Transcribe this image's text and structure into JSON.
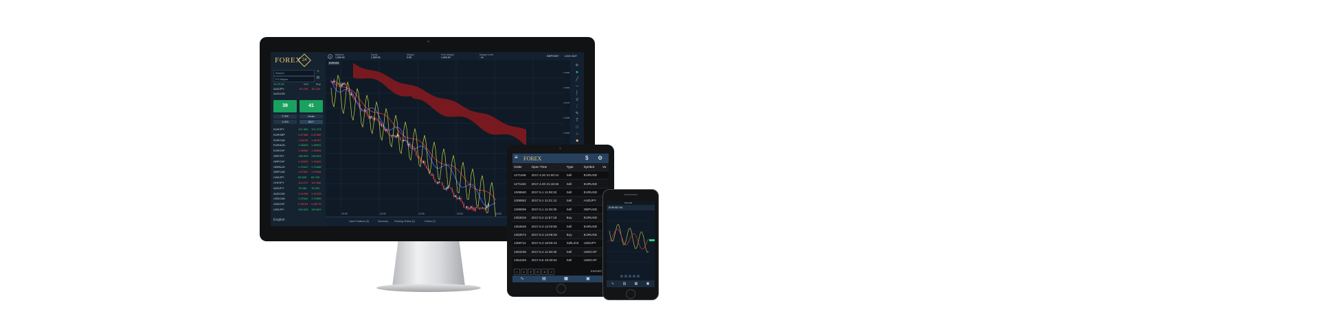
{
  "monitor": {
    "brand": "FOREX",
    "brand_badge": "24",
    "sidebar": {
      "search_placeholder": "Search",
      "watchlist": "FX Majors",
      "summary_symbol": "14.23.45",
      "sell_label": "Sell",
      "buy_label": "Buy",
      "pair": "AUDJPY",
      "pair_sell": "82.195",
      "pair_buy": "82.210",
      "pair2": "AUDUSD",
      "sell_price": "39",
      "buy_price": "41",
      "sell_btn": "SELL",
      "buy_btn": "BUY",
      "type_label": "TYPE",
      "order_label": "Order",
      "amount_label": "1,000",
      "language": "English",
      "symbols": [
        {
          "name": "EURJPY",
          "bid": "121.360",
          "ask": "121.374",
          "dir": "up"
        },
        {
          "name": "EURGBP",
          "bid": "0.87368",
          "ask": "0.87389",
          "dir": "dn"
        },
        {
          "name": "EURCAD",
          "bid": "1.46745",
          "ask": "1.46757",
          "dir": "dn"
        },
        {
          "name": "EURAUD",
          "bid": "1.48923",
          "ask": "1.48941",
          "dir": "up"
        },
        {
          "name": "EURCHF",
          "bid": "1.08382",
          "ask": "1.08396",
          "dir": "dn"
        },
        {
          "name": "GBPJPY",
          "bid": "138.903",
          "ask": "138.924",
          "dir": "up"
        },
        {
          "name": "GBPCHF",
          "bid": "1.24029",
          "ask": "1.24049",
          "dir": "dn"
        },
        {
          "name": "GBPAUD",
          "bid": "1.70447",
          "ask": "1.70468",
          "dir": "up"
        },
        {
          "name": "GBPCAD",
          "bid": "1.67961",
          "ask": "1.67984",
          "dir": "dn"
        },
        {
          "name": "CADJPY",
          "bid": "82.693",
          "ask": "82.709",
          "dir": "up"
        },
        {
          "name": "CHFJPY",
          "bid": "111.970",
          "ask": "111.988",
          "dir": "dn"
        },
        {
          "name": "NZDJPY",
          "bid": "78.285",
          "ask": "78.302",
          "dir": "up"
        },
        {
          "name": "AUDCAD",
          "bid": "1.01208",
          "ask": "1.01225",
          "dir": "dn"
        },
        {
          "name": "USDCAD",
          "bid": "1.37641",
          "ask": "1.37655",
          "dir": "up"
        },
        {
          "name": "USDCHF",
          "bid": "0.98764",
          "ask": "0.98779",
          "dir": "dn"
        },
        {
          "name": "USDJPY",
          "bid": "109.815",
          "ask": "109.829",
          "dir": "up"
        }
      ]
    },
    "topbar": {
      "cells": [
        {
          "label": "Balance",
          "value": "1,000.00"
        },
        {
          "label": "Equity",
          "value": "1,000.00"
        },
        {
          "label": "Margin",
          "value": "0.00"
        },
        {
          "label": "Free Margin",
          "value": "1,000.00"
        },
        {
          "label": "Margin Level",
          "value": "--%"
        }
      ],
      "deposit_label": "DEPOSIT",
      "logout_label": "LOG OUT"
    },
    "chart_symbol": "EURUSD",
    "time_ticks": [
      "10:00",
      "11:00",
      "12:00",
      "13:00",
      "14:00",
      "15:00"
    ],
    "price_ticks": [
      "1.0992",
      "1.0984",
      "1.0976",
      "1.0968",
      "1.0960",
      "1.0952",
      "1.0944",
      "1.0936",
      "1.0928"
    ],
    "bottom_tabs": [
      "Open Positions (0)",
      "Summary",
      "Pending Orders (0)",
      "Orders (7)"
    ]
  },
  "tablet": {
    "brand": "FOREX",
    "columns": [
      "Order",
      "Open Time",
      "Type",
      "Symbol",
      "Vo"
    ],
    "rows": [
      [
        "1271168",
        "2017.4.20 21:00:14",
        "Sell",
        "EURUSD"
      ],
      [
        "1271163",
        "2017.4.20 21:18:45",
        "Sell",
        "EURUSD"
      ],
      [
        "1308840",
        "2017.5.1 11:08:32",
        "Sell",
        "EURUSD"
      ],
      [
        "1308852",
        "2017.5.1 11:21:12",
        "Sell",
        "AUDJPY"
      ],
      [
        "1308836",
        "2017.5.1 11:25:30",
        "Sell",
        "GBPUSD"
      ],
      [
        "1353616",
        "2017.5.2 11:57:18",
        "Buy",
        "EURUSD"
      ],
      [
        "1353646",
        "2017.5.3 12:03:58",
        "Sell",
        "EURUSD"
      ],
      [
        "1353572",
        "2017.5.3 14:08:28",
        "Buy",
        "EURUSD"
      ],
      [
        "1358711",
        "2017.5.3 18:00:44",
        "SellLimit",
        "USDJPY"
      ],
      [
        "1353236",
        "2017.5.4 11:38:30",
        "Sell",
        "USDCHF"
      ],
      [
        "1354329",
        "2017.5.5 19:30:54",
        "Sell",
        "USDCHF"
      ]
    ],
    "pager": [
      "<",
      "1",
      "2",
      "3",
      "4",
      ">"
    ],
    "export_label": "EXPORT"
  },
  "phone": {
    "status": "9:41 AM",
    "header": "EURUSD M1"
  },
  "colors": {
    "up": "#2fd27a",
    "down": "#ff4a4a",
    "cloud": "#8b1a1f",
    "line_yellow": "#c8d24a",
    "line_blue": "#4a63ff",
    "line_red": "#ff3b3b",
    "candle_red": "#e0444d",
    "brand_gold": "#e8c66b",
    "buy_green": "#1aa15f"
  }
}
